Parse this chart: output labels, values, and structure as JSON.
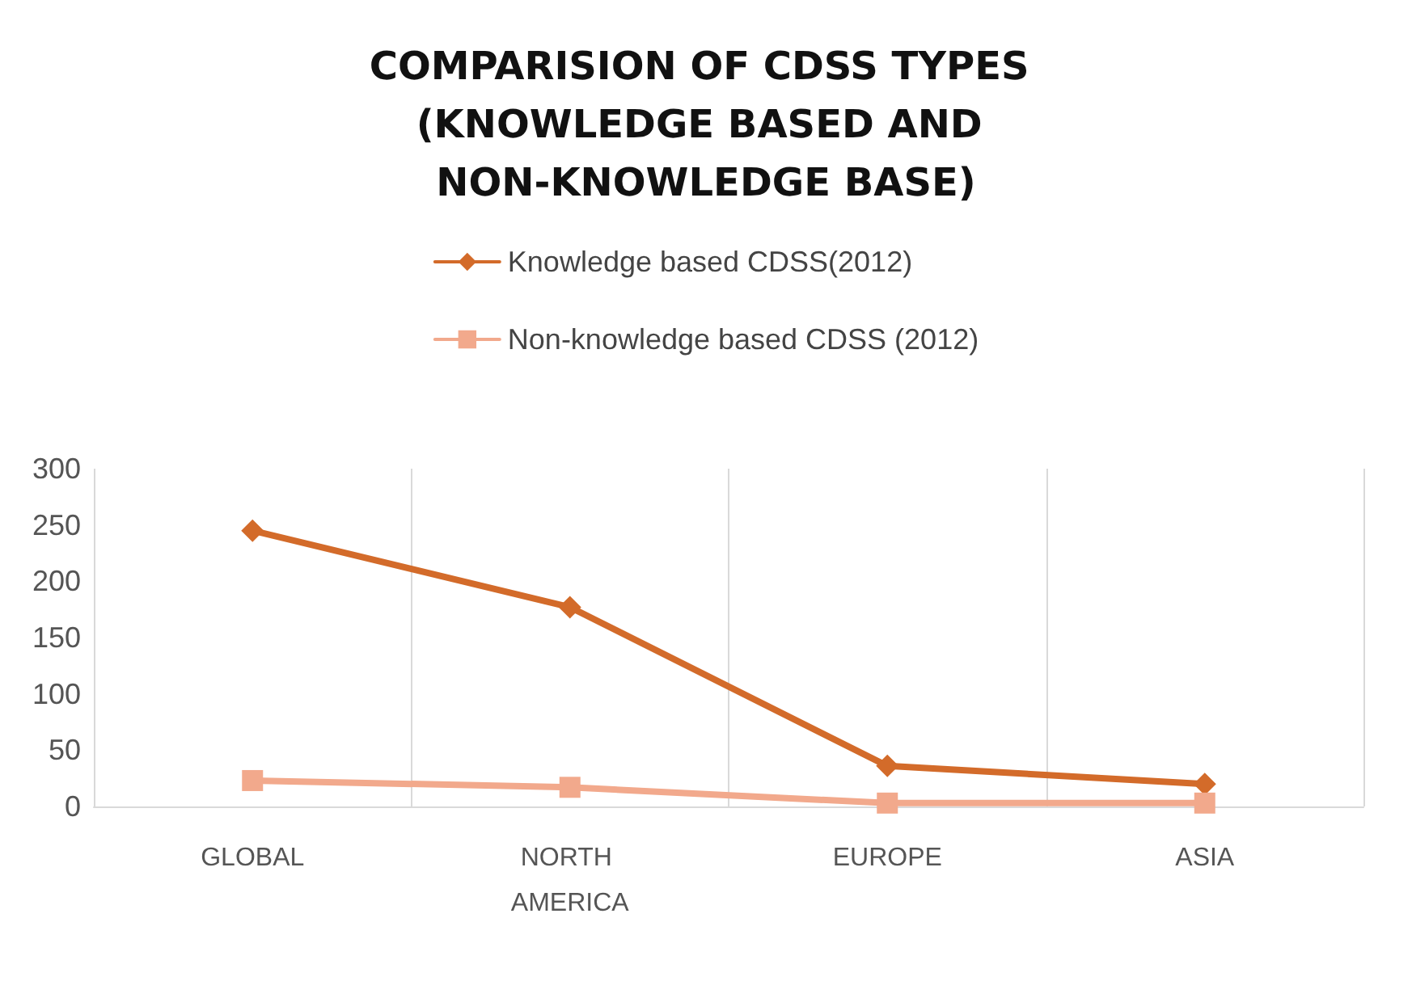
{
  "chart_data": {
    "type": "line",
    "title": "COMPARISION OF CDSS TYPES (KNOWLEDGE BASED AND NON-KNOWLEDGE BASE)",
    "categories": [
      "GLOBAL",
      "NORTH AMERICA",
      "EUROPE",
      "ASIA"
    ],
    "series": [
      {
        "name": "Knowledge based CDSS(2012)",
        "color": "#d36b2a",
        "marker": "diamond",
        "values": [
          245,
          177,
          36,
          20
        ]
      },
      {
        "name": "Non-knowledge based CDSS (2012)",
        "color": "#f2a98c",
        "marker": "square",
        "values": [
          23,
          17,
          3,
          3
        ]
      }
    ],
    "ylim": [
      0,
      300
    ],
    "yticks": [
      0,
      50,
      100,
      150,
      200,
      250,
      300
    ],
    "grid": "x",
    "legend": "top",
    "line_style": "solid"
  }
}
